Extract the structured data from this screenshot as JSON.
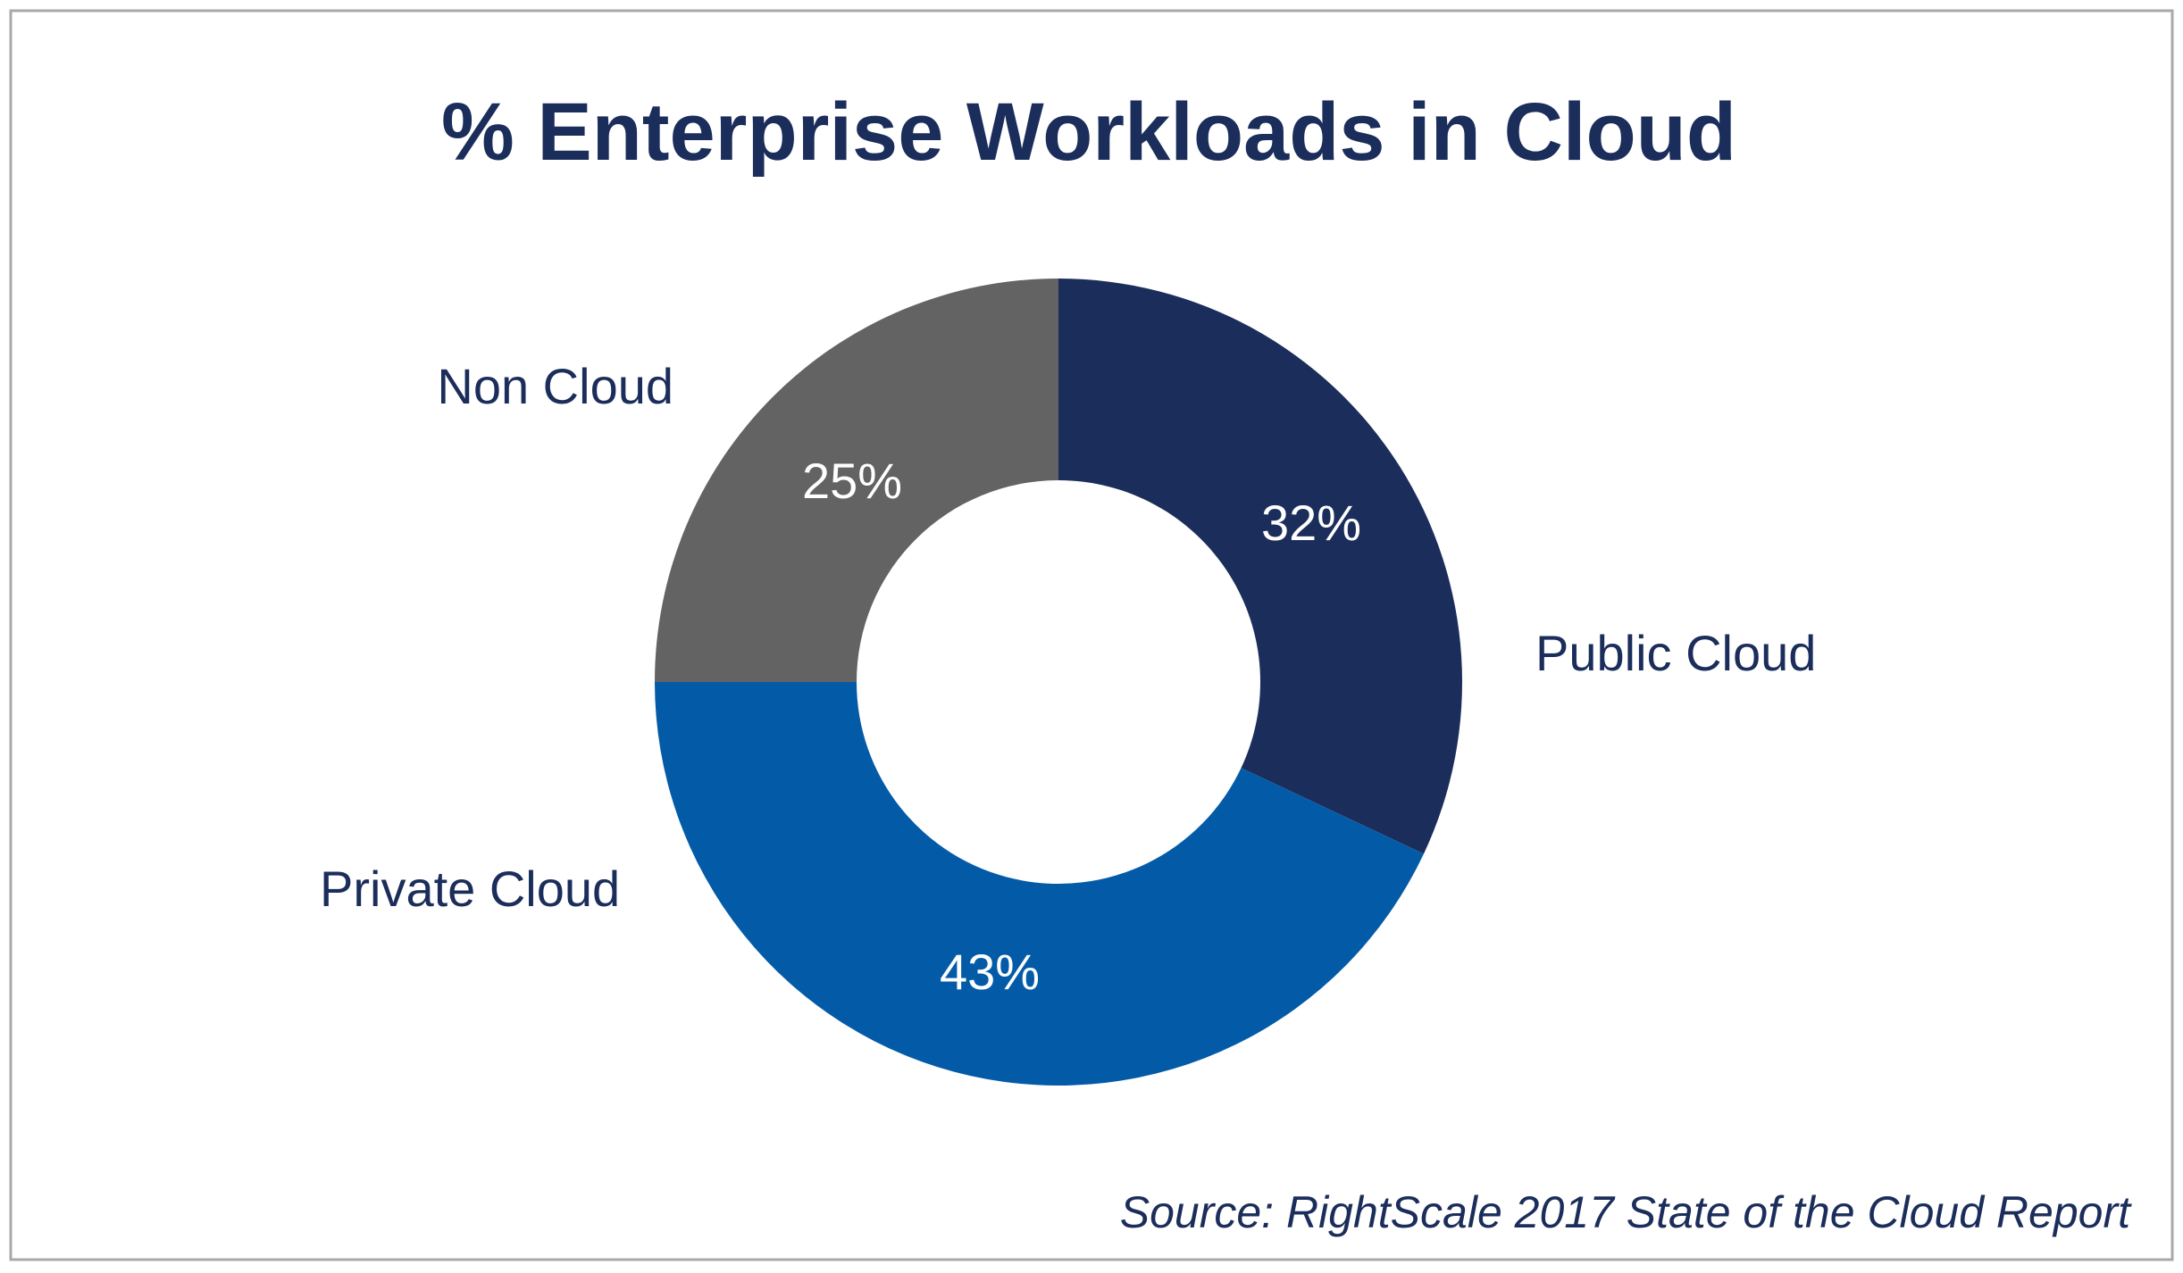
{
  "chart_data": {
    "type": "pie",
    "variant": "donut",
    "title": "% Enterprise Workloads in Cloud",
    "slices": [
      {
        "label": "Public Cloud",
        "value": 32,
        "value_label": "32%",
        "color": "#1b2d5a"
      },
      {
        "label": "Private Cloud",
        "value": 43,
        "value_label": "43%",
        "color": "#035ba8"
      },
      {
        "label": "Non Cloud",
        "value": 25,
        "value_label": "25%",
        "color": "#636363"
      }
    ],
    "source": "Source: RightScale 2017 State of the Cloud Report"
  }
}
